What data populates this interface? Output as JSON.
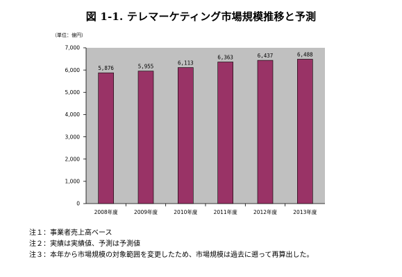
{
  "title": "図 1-1. テレマーケティング市場規模推移と予測",
  "unit_label": "（単位：億円）",
  "colors": {
    "bar_fill": "#993366",
    "bar_stroke": "#000000",
    "plot_background": "#c0c0c0",
    "page_background": "#ffffff"
  },
  "chart_data": {
    "type": "bar",
    "title": "図 1-1. テレマーケティング市場規模推移と予測",
    "categories": [
      "2008年度",
      "2009年度",
      "2010年度",
      "2011年度",
      "2012年度",
      "2013年度"
    ],
    "values": [
      5876,
      5955,
      6113,
      6363,
      6437,
      6488
    ],
    "data_labels": [
      "5,876",
      "5,955",
      "6,113",
      "6,363",
      "6,437",
      "6,488"
    ],
    "yticks": [
      "0",
      "1,000",
      "2,000",
      "3,000",
      "4,000",
      "5,000",
      "6,000",
      "7,000"
    ],
    "ylim": [
      0,
      7000
    ],
    "ystep": 1000,
    "xlabel": "",
    "ylabel": "",
    "grid": false,
    "legend": "none"
  },
  "notes": [
    "注１：事業者売上高ベース",
    "注２：実績は実績値、予測は予測値",
    "注３：本年から市場規模の対象範囲を変更したため、市場規模は過去に遡って再算出した。"
  ]
}
